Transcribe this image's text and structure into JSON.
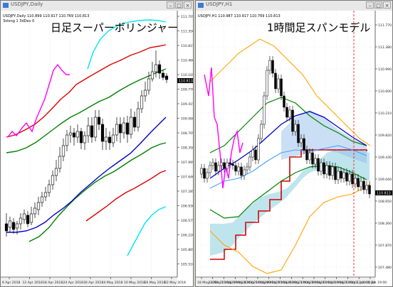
{
  "left_window": {
    "title": "USDJPY,Daily",
    "overlay_title": "日足スーパーボリンジャー",
    "info_line1": "USDJPY,Daily  110.899 110.917 110.769 110.813",
    "info_line2": "3xlong 1 3dDev 0",
    "price_labels": [
      "111.705",
      "111.350",
      "110.815",
      "110.460",
      "110.105",
      "109.770",
      "109.415",
      "109.060",
      "108.705",
      "108.350",
      "107.995",
      "107.640",
      "107.285",
      "106.930",
      "106.575",
      "106.220",
      "105.865",
      "105.510"
    ],
    "current_price": "110.813",
    "date_labels": [
      "6 Apr 2018",
      "12 Apr 2018",
      "18 Apr 2018",
      "24 Apr 2018",
      "30 Apr 2018",
      "4 May 2018",
      "10 May 2018",
      "16 May 2018",
      "22 May 2018"
    ]
  },
  "right_window": {
    "title": "USDJPY,H1",
    "overlay_title": "1時間足スパンモデル",
    "info_line1": "USDJPY,H1  110.987 110.917 110.769 110.813",
    "price_labels": [
      "111.770",
      "111.380",
      "110.990",
      "110.600",
      "110.210",
      "109.820",
      "109.430",
      "109.040",
      "108.650",
      "108.260",
      "107.870",
      "107.480"
    ],
    "current_price": "110.813",
    "date_labels": [
      "18 May 2018",
      "21 May 11:00",
      "22 May 09:00",
      "23 May 03:00",
      "24 May 19:00",
      "25 May 09:00",
      "28 May 15:00",
      "29 May 03:00",
      "30 May 19:00",
      "21 May 19:00",
      "28 May 11:00",
      "30 May 09:00",
      "01 May 11:00",
      "20 May 21:00",
      "01 Jun 05:00",
      "04 Jun 19:00"
    ]
  },
  "colors": {
    "sigma3": "#00e5ee",
    "sigma2": "#e00000",
    "sigma1": "#008000",
    "middle": "#0000cc",
    "lagging": "#ff00ff",
    "span_fill": "#a8dce8",
    "orange": "#ffa500",
    "dashed_red": "#ff0000"
  },
  "icons": {
    "minimize": "minimize-icon",
    "maximize": "maximize-icon",
    "close": "close-icon"
  }
}
